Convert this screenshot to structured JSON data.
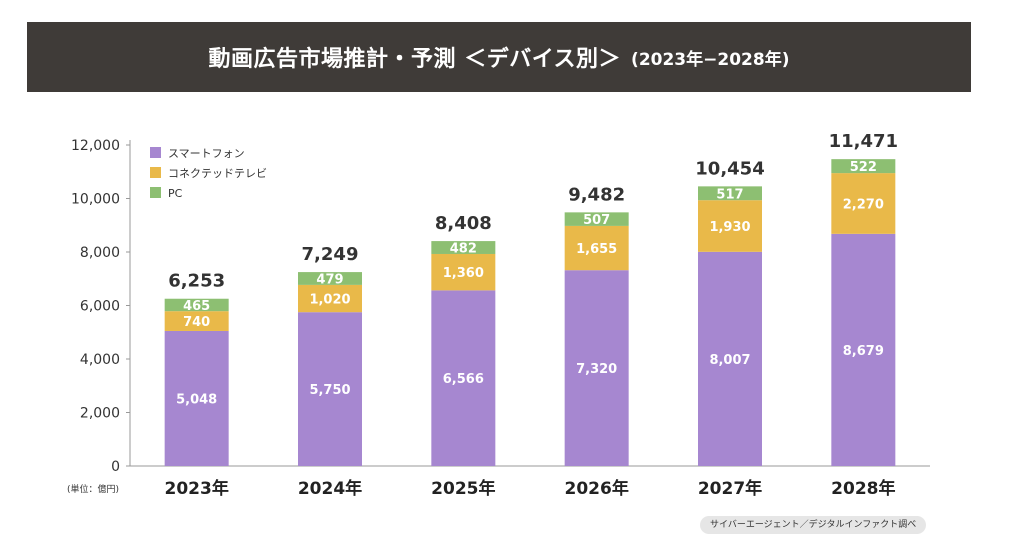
{
  "title": "動画広告市場推計・予測 ＜デバイス別＞",
  "subtitle": "(2023年−2028年)",
  "unit_label": "(単位：億円)",
  "source": "サイバーエージェント／デジタルインファクト調べ",
  "colors": {
    "smartphone": "#a687d0",
    "connected_tv": "#e9b949",
    "pc": "#8dbf72"
  },
  "chart_data": {
    "type": "bar",
    "stacked": true,
    "categories": [
      "2023年",
      "2024年",
      "2025年",
      "2026年",
      "2027年",
      "2028年"
    ],
    "series": [
      {
        "name": "スマートフォン",
        "values": [
          5048,
          5750,
          6566,
          7320,
          8007,
          8679
        ]
      },
      {
        "name": "コネクテッドテレビ",
        "values": [
          740,
          1020,
          1360,
          1655,
          1930,
          2270
        ]
      },
      {
        "name": "PC",
        "values": [
          465,
          479,
          482,
          507,
          517,
          522
        ]
      }
    ],
    "totals": [
      6253,
      7249,
      8408,
      9482,
      10454,
      11471
    ],
    "ylim": [
      0,
      12000
    ],
    "yticks": [
      0,
      2000,
      4000,
      6000,
      8000,
      10000,
      12000
    ],
    "legend_position": "top-left",
    "grid": false
  }
}
